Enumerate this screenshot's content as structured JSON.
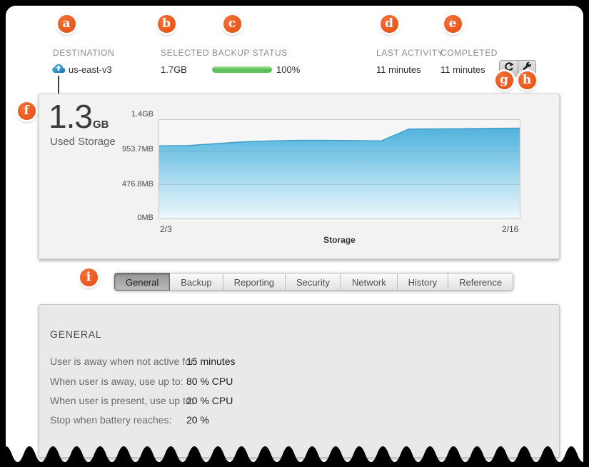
{
  "badges": {
    "letters": [
      "a",
      "b",
      "c",
      "d",
      "e",
      "f",
      "g",
      "h",
      "i"
    ]
  },
  "header": {
    "destination": {
      "label": "DESTINATION",
      "value": "us-east-v3"
    },
    "selected": {
      "label": "SELECTED",
      "value": "1.7GB"
    },
    "backup_status": {
      "label": "BACKUP STATUS",
      "percent": 100,
      "percent_label": "100%"
    },
    "last_activity": {
      "label": "LAST ACTIVITY",
      "value": "11 minutes"
    },
    "completed": {
      "label": "COMPLETED",
      "value": "11 minutes"
    },
    "icons": {
      "restore": "restore-circular-arrow",
      "settings": "wrench"
    }
  },
  "storage_panel": {
    "used_value": "1.3",
    "used_unit": "GB",
    "used_caption": "Used Storage"
  },
  "chart_data": {
    "type": "area",
    "title": "Storage",
    "xlabel": "Storage",
    "legend": false,
    "grid": true,
    "x": [
      "2/3",
      "2/4",
      "2/5",
      "2/6",
      "2/7",
      "2/8",
      "2/9",
      "2/10",
      "2/11",
      "2/12",
      "2/13",
      "2/14",
      "2/15",
      "2/16"
    ],
    "series": [
      {
        "name": "Used Storage (MB)",
        "values_mb": [
          1030,
          1032,
          1060,
          1085,
          1100,
          1108,
          1108,
          1105,
          1100,
          1270,
          1272,
          1275,
          1280,
          1282
        ]
      }
    ],
    "ylim_mb": [
      0,
      1400
    ],
    "y_ticks": [
      {
        "label": "0MB",
        "mb": 0
      },
      {
        "label": "476.8MB",
        "mb": 476.8
      },
      {
        "label": "953.7MB",
        "mb": 953.7
      },
      {
        "label": "1.4GB",
        "mb": 1400
      }
    ],
    "gridlines_mb": [
      476.8,
      953.7
    ],
    "x_tick_labels": [
      "2/3",
      "2/16"
    ],
    "colors": {
      "area_top": "#54b3dc",
      "area_bottom": "#edf8fd",
      "line": "#3d9fc8"
    }
  },
  "tabs": {
    "items": [
      {
        "label": "General",
        "selected": true
      },
      {
        "label": "Backup",
        "selected": false
      },
      {
        "label": "Reporting",
        "selected": false
      },
      {
        "label": "Security",
        "selected": false
      },
      {
        "label": "Network",
        "selected": false
      },
      {
        "label": "History",
        "selected": false
      },
      {
        "label": "Reference",
        "selected": false
      }
    ]
  },
  "settings": {
    "heading": "GENERAL",
    "rows": [
      {
        "label": "User is away when not active for:",
        "value": "15 minutes"
      },
      {
        "label": "When user is away, use up to:",
        "value": "80 % CPU"
      },
      {
        "label": "When user is present, use up to:",
        "value": "20 % CPU"
      },
      {
        "label": "Stop when battery reaches:",
        "value": "20 %"
      }
    ]
  },
  "colors": {
    "accent_orange": "#ec5a1e",
    "progress_green": "#58bb57",
    "chart_blue": "#54b3dc"
  }
}
